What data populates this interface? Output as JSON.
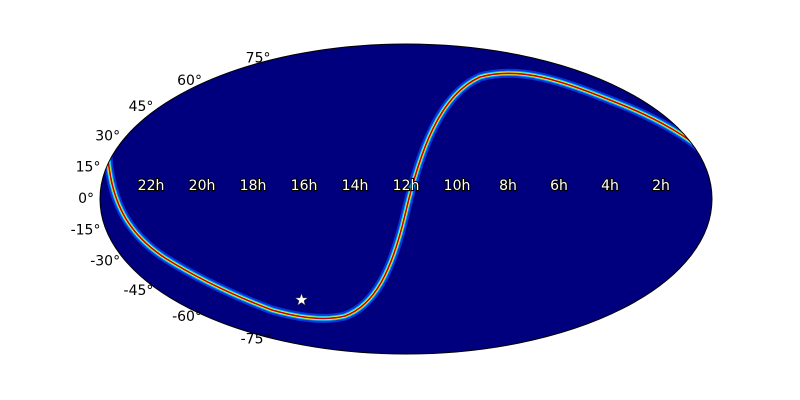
{
  "chart_data": {
    "type": "mollweide",
    "projection": "mollweide",
    "background_color": "#00007f",
    "xlim": [
      24,
      0
    ],
    "xticks": [
      {
        "value": 22,
        "label": "22h"
      },
      {
        "value": 20,
        "label": "20h"
      },
      {
        "value": 18,
        "label": "18h"
      },
      {
        "value": 16,
        "label": "16h"
      },
      {
        "value": 14,
        "label": "14h"
      },
      {
        "value": 12,
        "label": "12h"
      },
      {
        "value": 10,
        "label": "10h"
      },
      {
        "value": 8,
        "label": "8h"
      },
      {
        "value": 6,
        "label": "6h"
      },
      {
        "value": 4,
        "label": "4h"
      },
      {
        "value": 2,
        "label": "2h"
      }
    ],
    "ylim": [
      -90,
      90
    ],
    "yticks": [
      {
        "value": 75,
        "label": "75°"
      },
      {
        "value": 60,
        "label": "60°"
      },
      {
        "value": 45,
        "label": "45°"
      },
      {
        "value": 30,
        "label": "30°"
      },
      {
        "value": 15,
        "label": "15°"
      },
      {
        "value": 0,
        "label": "0°"
      },
      {
        "value": -15,
        "label": "-15°"
      },
      {
        "value": -30,
        "label": "-30°"
      },
      {
        "value": -45,
        "label": "-45°"
      },
      {
        "value": -60,
        "label": "-60°"
      },
      {
        "value": -75,
        "label": "-75°"
      }
    ],
    "marker": {
      "x": 17.4,
      "y": -50,
      "color": "#ffffff"
    }
  }
}
